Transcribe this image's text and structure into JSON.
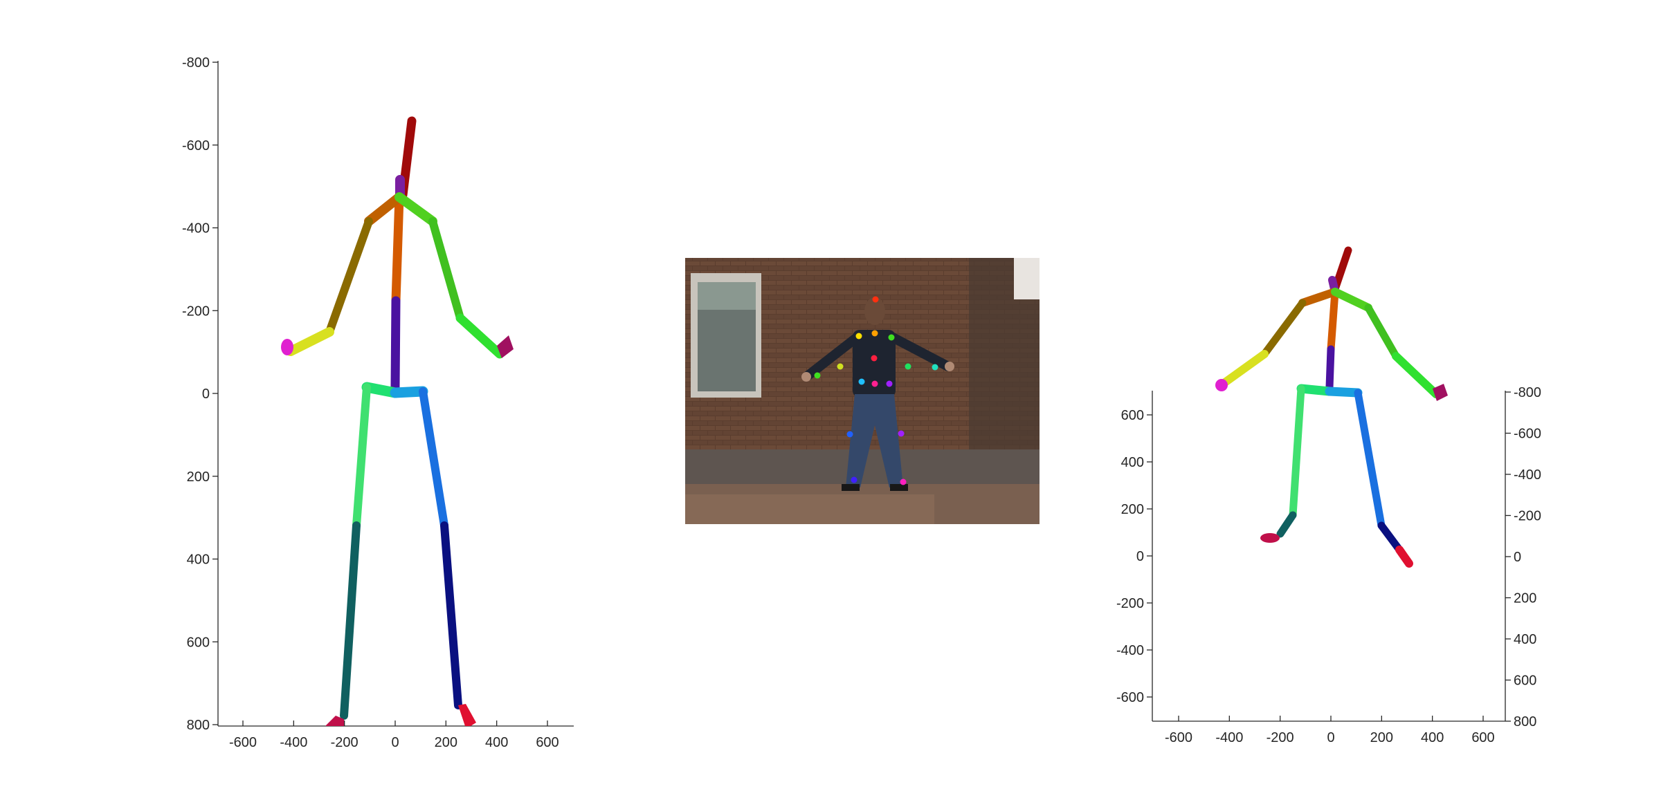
{
  "left_plot": {
    "y_ticks": [
      "-800",
      "-600",
      "-400",
      "-200",
      "0",
      "200",
      "400",
      "600",
      "800"
    ],
    "x_ticks": [
      "-600",
      "-400",
      "-200",
      "0",
      "200",
      "400",
      "600"
    ]
  },
  "right_plot": {
    "y_ticks_left": [
      "600",
      "400",
      "200",
      "0",
      "-200",
      "-400",
      "-600"
    ],
    "y_ticks_right": [
      "-800",
      "-600",
      "-400",
      "-200",
      "0",
      "200",
      "400",
      "600",
      "800"
    ],
    "x_ticks": [
      "-600",
      "-400",
      "-200",
      "0",
      "200",
      "400",
      "600"
    ]
  },
  "colors": {
    "head": "#b01010",
    "neck": "#7a1fa0",
    "spine_upper": "#d45a00",
    "spine_lower": "#4a12a0",
    "right_upper_arm": "#8a6a00",
    "right_forearm": "#d8e020",
    "right_hand": "#e020d0",
    "left_upper_arm": "#40c020",
    "left_forearm": "#30e030",
    "left_hand": "#a01060",
    "hip_left": "#20e070",
    "hip_right": "#1aa0e0",
    "left_thigh": "#40e070",
    "left_shin": "#106060",
    "right_thigh": "#1a70e0",
    "right_shin": "#0a1080",
    "foot": "#e01030"
  },
  "photo_keypoint_colors": [
    "#ff3010",
    "#ffa000",
    "#ffe000",
    "#40e020",
    "#20e060",
    "#20e0c0",
    "#20c0ff",
    "#2060ff",
    "#4020ff",
    "#a020ff",
    "#ff20c0",
    "#ff2040",
    "#ff2090",
    "#20a0ff"
  ]
}
